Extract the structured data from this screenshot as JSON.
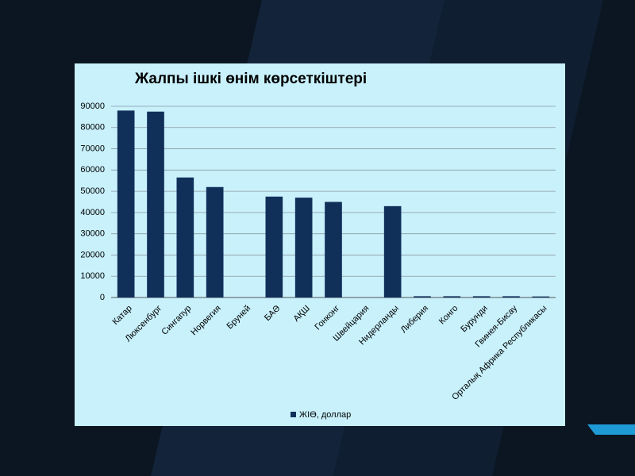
{
  "chart_data": {
    "type": "bar",
    "title": "Жалпы ішкі өнім көрсеткіштері",
    "categories": [
      "Катар",
      "Люксенбург",
      "Сингапур",
      "Норвегия",
      "Бруней",
      "БАӘ",
      "АҚШ",
      "Гонконг",
      "Швейцария",
      "Нидерланды",
      "Либерия",
      "Конго",
      "Бурунди",
      "Гвинея-Бисау",
      "Орталық Африка Республикасы"
    ],
    "series": [
      {
        "name": "ЖІӨ, доллар",
        "color": "#10305a",
        "values": [
          88000,
          87500,
          56500,
          52000,
          null,
          47500,
          47000,
          45000,
          null,
          43000,
          600,
          600,
          600,
          600,
          500
        ]
      }
    ],
    "ylim": [
      0,
      90000
    ],
    "yticks": [
      0,
      10000,
      20000,
      30000,
      40000,
      50000,
      60000,
      70000,
      80000,
      90000
    ],
    "grid": true,
    "legend": "bottom"
  }
}
